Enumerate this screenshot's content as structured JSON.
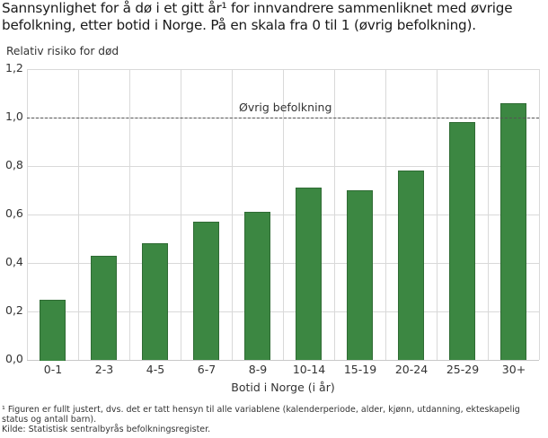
{
  "title": "Sannsynlighet for å dø i et gitt år¹ for innvandrere sammenliknet med øvrige befolkning, etter botid i Norge. På en skala fra 0 til 1 (øvrig befolkning).",
  "footnotes": {
    "note": "¹ Figuren er fullt justert, dvs. det er tatt hensyn til alle variablene (kalenderperiode, alder, kjønn, utdanning, ekteskapelig status og antall barn).",
    "source": "Kilde: Statistisk sentralbyrås befolkningsregister."
  },
  "colors": {
    "bar": "#3c8742",
    "grid": "#d9d9d9",
    "reference_line": "#555555"
  },
  "chart_data": {
    "type": "bar",
    "title": "Sannsynlighet for å dø i et gitt år¹ for innvandrere sammenliknet med øvrige befolkning, etter botid i Norge. På en skala fra 0 til 1 (øvrig befolkning).",
    "xlabel": "Botid i Norge (i år)",
    "ylabel": "Relativ risiko for død",
    "categories": [
      "0-1",
      "2-3",
      "4-5",
      "6-7",
      "8-9",
      "10-14",
      "15-19",
      "20-24",
      "25-29",
      "30+"
    ],
    "values": [
      0.25,
      0.43,
      0.48,
      0.57,
      0.61,
      0.71,
      0.7,
      0.78,
      0.98,
      1.06
    ],
    "ylim": [
      0,
      1.2
    ],
    "yticks": [
      "0,0",
      "0,2",
      "0,4",
      "0,6",
      "0,8",
      "1,0",
      "1,2"
    ],
    "grid": true,
    "legend": null,
    "annotations": [
      {
        "type": "reference_line",
        "y": 1.0,
        "label": "Øvrig befolkning",
        "style": "dashed"
      }
    ]
  }
}
